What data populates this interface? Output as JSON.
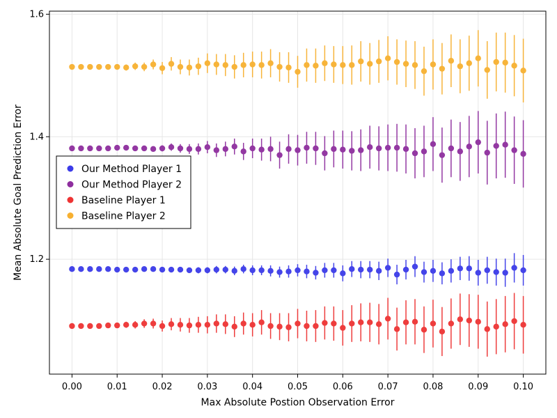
{
  "chart_data": {
    "type": "scatter",
    "xlabel": "Max Absolute Postion Observation Error",
    "ylabel": "Mean Absolute Goal Prediction Error",
    "xlim": [
      -0.005,
      0.105
    ],
    "ylim": [
      1.0125,
      1.605
    ],
    "xticks": [
      "0.00",
      "0.01",
      "0.02",
      "0.03",
      "0.04",
      "0.05",
      "0.06",
      "0.07",
      "0.08",
      "0.09",
      "0.10"
    ],
    "yticks": [
      "1.2",
      "1.4",
      "1.6"
    ],
    "grid": true,
    "legend_position": "center-left",
    "x": [
      0.0,
      0.002,
      0.004,
      0.006,
      0.008,
      0.01,
      0.012,
      0.014,
      0.016,
      0.018,
      0.02,
      0.022,
      0.024,
      0.026,
      0.028,
      0.03,
      0.032,
      0.034,
      0.036,
      0.038,
      0.04,
      0.042,
      0.044,
      0.046,
      0.048,
      0.05,
      0.052,
      0.054,
      0.056,
      0.058,
      0.06,
      0.062,
      0.064,
      0.066,
      0.068,
      0.07,
      0.072,
      0.074,
      0.076,
      0.078,
      0.08,
      0.082,
      0.084,
      0.086,
      0.088,
      0.09,
      0.092,
      0.094,
      0.096,
      0.098,
      0.1
    ],
    "series": [
      {
        "name": "Our Method Player 1",
        "color": "#3b3be8",
        "y": [
          1.184,
          1.184,
          1.184,
          1.184,
          1.184,
          1.183,
          1.183,
          1.183,
          1.184,
          1.184,
          1.183,
          1.183,
          1.183,
          1.182,
          1.182,
          1.182,
          1.183,
          1.183,
          1.181,
          1.184,
          1.182,
          1.182,
          1.181,
          1.179,
          1.18,
          1.182,
          1.18,
          1.178,
          1.182,
          1.182,
          1.177,
          1.184,
          1.183,
          1.183,
          1.181,
          1.186,
          1.175,
          1.183,
          1.188,
          1.179,
          1.181,
          1.177,
          1.181,
          1.185,
          1.185,
          1.178,
          1.182,
          1.179,
          1.178,
          1.186,
          1.182
        ],
        "err": [
          0.001,
          0.001,
          0.001,
          0.001,
          0.001,
          0.002,
          0.002,
          0.002,
          0.002,
          0.002,
          0.003,
          0.003,
          0.004,
          0.004,
          0.005,
          0.005,
          0.006,
          0.006,
          0.007,
          0.007,
          0.008,
          0.008,
          0.009,
          0.009,
          0.01,
          0.01,
          0.011,
          0.011,
          0.012,
          0.012,
          0.013,
          0.013,
          0.014,
          0.014,
          0.015,
          0.015,
          0.016,
          0.016,
          0.017,
          0.017,
          0.018,
          0.018,
          0.019,
          0.019,
          0.02,
          0.021,
          0.022,
          0.022,
          0.023,
          0.024,
          0.025
        ]
      },
      {
        "name": "Our Method Player 2",
        "color": "#8e2e9e",
        "y": [
          1.381,
          1.381,
          1.381,
          1.381,
          1.381,
          1.382,
          1.382,
          1.381,
          1.381,
          1.38,
          1.381,
          1.383,
          1.381,
          1.38,
          1.38,
          1.383,
          1.378,
          1.38,
          1.384,
          1.376,
          1.381,
          1.379,
          1.38,
          1.37,
          1.38,
          1.378,
          1.382,
          1.381,
          1.373,
          1.38,
          1.379,
          1.377,
          1.378,
          1.383,
          1.381,
          1.382,
          1.382,
          1.38,
          1.373,
          1.376,
          1.388,
          1.37,
          1.381,
          1.376,
          1.384,
          1.391,
          1.374,
          1.385,
          1.387,
          1.378,
          1.372
        ],
        "err": [
          0.001,
          0.001,
          0.001,
          0.001,
          0.002,
          0.002,
          0.002,
          0.003,
          0.003,
          0.004,
          0.005,
          0.006,
          0.007,
          0.008,
          0.009,
          0.01,
          0.011,
          0.012,
          0.013,
          0.014,
          0.016,
          0.018,
          0.02,
          0.022,
          0.024,
          0.025,
          0.026,
          0.027,
          0.028,
          0.03,
          0.031,
          0.032,
          0.034,
          0.035,
          0.036,
          0.038,
          0.039,
          0.04,
          0.041,
          0.042,
          0.044,
          0.045,
          0.047,
          0.048,
          0.05,
          0.051,
          0.052,
          0.053,
          0.054,
          0.055,
          0.055
        ]
      },
      {
        "name": "Baseline Player 1",
        "color": "#ee3333",
        "y": [
          1.091,
          1.091,
          1.091,
          1.091,
          1.092,
          1.092,
          1.093,
          1.093,
          1.095,
          1.095,
          1.091,
          1.094,
          1.093,
          1.092,
          1.093,
          1.093,
          1.095,
          1.094,
          1.09,
          1.095,
          1.093,
          1.097,
          1.091,
          1.09,
          1.089,
          1.095,
          1.091,
          1.091,
          1.096,
          1.095,
          1.088,
          1.095,
          1.097,
          1.097,
          1.094,
          1.103,
          1.086,
          1.097,
          1.098,
          1.085,
          1.095,
          1.082,
          1.095,
          1.102,
          1.1,
          1.098,
          1.086,
          1.09,
          1.094,
          1.099,
          1.093
        ],
        "err": [
          0.001,
          0.001,
          0.002,
          0.002,
          0.003,
          0.004,
          0.005,
          0.006,
          0.007,
          0.008,
          0.009,
          0.01,
          0.011,
          0.012,
          0.013,
          0.014,
          0.015,
          0.016,
          0.017,
          0.018,
          0.019,
          0.02,
          0.021,
          0.022,
          0.023,
          0.024,
          0.025,
          0.026,
          0.027,
          0.028,
          0.029,
          0.03,
          0.031,
          0.032,
          0.033,
          0.034,
          0.035,
          0.036,
          0.037,
          0.038,
          0.039,
          0.04,
          0.041,
          0.042,
          0.043,
          0.044,
          0.045,
          0.045,
          0.046,
          0.046,
          0.047
        ]
      },
      {
        "name": "Baseline Player 2",
        "color": "#f7b030",
        "y": [
          1.514,
          1.514,
          1.514,
          1.514,
          1.514,
          1.514,
          1.513,
          1.515,
          1.514,
          1.518,
          1.512,
          1.519,
          1.514,
          1.513,
          1.515,
          1.52,
          1.518,
          1.517,
          1.514,
          1.517,
          1.518,
          1.517,
          1.52,
          1.514,
          1.513,
          1.506,
          1.517,
          1.516,
          1.52,
          1.518,
          1.517,
          1.517,
          1.523,
          1.519,
          1.523,
          1.528,
          1.522,
          1.519,
          1.517,
          1.507,
          1.518,
          1.511,
          1.524,
          1.515,
          1.52,
          1.528,
          1.509,
          1.522,
          1.521,
          1.516,
          1.508
        ],
        "err": [
          0.001,
          0.001,
          0.002,
          0.002,
          0.003,
          0.004,
          0.005,
          0.006,
          0.007,
          0.008,
          0.01,
          0.011,
          0.012,
          0.013,
          0.014,
          0.016,
          0.017,
          0.018,
          0.019,
          0.02,
          0.021,
          0.022,
          0.023,
          0.024,
          0.025,
          0.026,
          0.027,
          0.028,
          0.029,
          0.03,
          0.031,
          0.032,
          0.033,
          0.034,
          0.035,
          0.036,
          0.037,
          0.038,
          0.039,
          0.04,
          0.041,
          0.042,
          0.043,
          0.044,
          0.045,
          0.046,
          0.047,
          0.048,
          0.049,
          0.05,
          0.052
        ]
      }
    ]
  }
}
